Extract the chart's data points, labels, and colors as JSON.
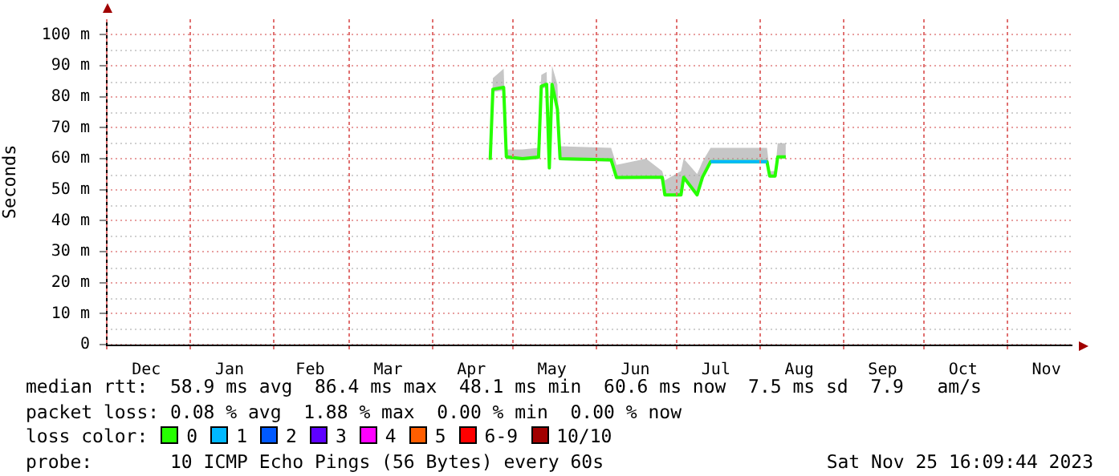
{
  "chart_data": {
    "type": "line",
    "ylabel": "Seconds",
    "legend_title": "loss color:",
    "legend": "bottom",
    "grid": true,
    "marker": "none",
    "line_style": "solid",
    "xlim": [
      "2022-12-01",
      "2023-11-25T16:09"
    ],
    "xticks": [
      {
        "value": "2022-12-01",
        "label": null
      },
      {
        "value": "2022-12-16",
        "label": "Dec"
      },
      {
        "value": "2023-01-01",
        "label": null
      },
      {
        "value": "2023-01-16",
        "label": "Jan"
      },
      {
        "value": "2023-02-01",
        "label": null
      },
      {
        "value": "2023-02-15",
        "label": "Feb"
      },
      {
        "value": "2023-03-01",
        "label": null
      },
      {
        "value": "2023-03-16",
        "label": "Mar"
      },
      {
        "value": "2023-04-01",
        "label": null
      },
      {
        "value": "2023-04-16",
        "label": "Apr"
      },
      {
        "value": "2023-05-01",
        "label": null
      },
      {
        "value": "2023-05-16",
        "label": "May"
      },
      {
        "value": "2023-06-01",
        "label": null
      },
      {
        "value": "2023-06-16",
        "label": "Jun"
      },
      {
        "value": "2023-07-01",
        "label": null
      },
      {
        "value": "2023-07-16",
        "label": "Jul"
      },
      {
        "value": "2023-08-01",
        "label": null
      },
      {
        "value": "2023-08-16",
        "label": "Aug"
      },
      {
        "value": "2023-09-01",
        "label": null
      },
      {
        "value": "2023-09-16",
        "label": "Sep"
      },
      {
        "value": "2023-10-01",
        "label": null
      },
      {
        "value": "2023-10-16",
        "label": "Oct"
      },
      {
        "value": "2023-11-01",
        "label": null
      },
      {
        "value": "2023-11-16",
        "label": "Nov"
      }
    ],
    "ylim": [
      0,
      105
    ],
    "yticks": [
      0,
      {
        "value": 10,
        "label": "10 m"
      },
      {
        "value": 20,
        "label": "20 m"
      },
      {
        "value": 30,
        "label": "30 m"
      },
      {
        "value": 40,
        "label": "40 m"
      },
      {
        "value": 50,
        "label": "50 m"
      },
      {
        "value": 60,
        "label": "60 m"
      },
      {
        "value": 70,
        "label": "70 m"
      },
      {
        "value": 80,
        "label": "80 m"
      },
      {
        "value": 90,
        "label": "90 m"
      },
      {
        "value": 100,
        "label": "100 m"
      }
    ],
    "series": [
      {
        "name": "0",
        "color": "#26ff00",
        "x": [
          "2023-04-23",
          "2023-04-24",
          "2023-04-28",
          "2023-04-29",
          "2023-05-05",
          "2023-05-11",
          "2023-05-12",
          "2023-05-14",
          "2023-05-15",
          "2023-05-16",
          "2023-05-18",
          "2023-05-19",
          "2023-06-07",
          "2023-06-09",
          "2023-06-20",
          "2023-06-26",
          "2023-06-27",
          "2023-07-03",
          "2023-07-04",
          "2023-07-09",
          "2023-07-11",
          "2023-07-14",
          "2023-08-04",
          "2023-08-05",
          "2023-08-07",
          "2023-08-08",
          "2023-08-11"
        ],
        "values": [
          59.6,
          82.4,
          83,
          60.6,
          60,
          60.5,
          83.4,
          84,
          57,
          84,
          76,
          60,
          59.6,
          53.9,
          54,
          54,
          48.3,
          48.3,
          54,
          48.3,
          54,
          59,
          59,
          54.4,
          54.4,
          60.6,
          60.6
        ],
        "lower": [
          59.4,
          81.5,
          82,
          59.8,
          59.5,
          59.8,
          82.5,
          83,
          56.5,
          83,
          75,
          59.5,
          59,
          53.5,
          53.5,
          53.5,
          48,
          48,
          53.5,
          48,
          53.5,
          58.5,
          58.5,
          54,
          54,
          60,
          60
        ],
        "upper": [
          60.5,
          86,
          89,
          63,
          63,
          63.5,
          87,
          88,
          60,
          90,
          84,
          64,
          63.5,
          58,
          60,
          56,
          53,
          56,
          60,
          55,
          59,
          63.5,
          63.5,
          56,
          56,
          65,
          65
        ]
      },
      {
        "name": "1",
        "color": "#00b8ff",
        "x": [
          "2023-07-14",
          "2023-08-04"
        ],
        "values": [
          59,
          59
        ]
      },
      {
        "name": "2",
        "color": "#0059ff"
      },
      {
        "name": "3",
        "color": "#5e00ff"
      },
      {
        "name": "4",
        "color": "#ff00ff"
      },
      {
        "name": "5",
        "color": "#ff5e00"
      },
      {
        "name": "6-9",
        "color": "#ff0000"
      },
      {
        "name": "10/10",
        "color": "#a10000"
      }
    ],
    "annotations": [
      "median rtt:  58.9 ms avg  86.4 ms max  48.1 ms min  60.6 ms now  7.5 ms sd  7.9   am/s",
      "packet loss: 0.08 % avg  1.88 % max  0.00 % min  0.00 % now",
      "probe:       10 ICMP Echo Pings (56 Bytes) every 60s",
      "Sat Nov 25 16:09:44 2023"
    ]
  }
}
